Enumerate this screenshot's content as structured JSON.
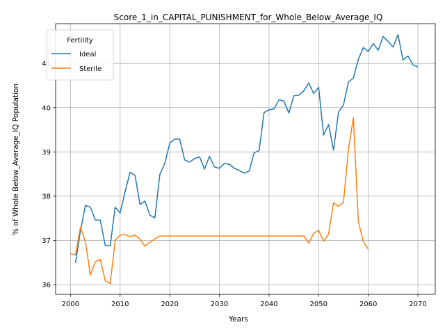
{
  "chart_data": {
    "type": "line",
    "title": "Score_1_in_CAPITAL_PUNISHMENT_for_Whole_Below_Average_IQ",
    "xlabel": "Years",
    "ylabel": "% of Whole Below_Average_IQ Population",
    "xlim": [
      1997,
      2073.5
    ],
    "ylim": [
      35.78,
      41.9
    ],
    "x_ticks": [
      2000,
      2010,
      2020,
      2030,
      2040,
      2050,
      2060,
      2070
    ],
    "y_ticks": [
      36,
      37,
      38,
      39,
      40,
      41
    ],
    "grid": true,
    "legend": {
      "title": "Fertility",
      "position": "top-left"
    },
    "series": [
      {
        "name": "Ideal",
        "color": "#1f77b4",
        "x": [
          2001,
          2002,
          2003,
          2004,
          2005,
          2006,
          2007,
          2008,
          2009,
          2010,
          2011,
          2012,
          2013,
          2014,
          2015,
          2016,
          2017,
          2018,
          2019,
          2020,
          2021,
          2022,
          2023,
          2024,
          2025,
          2026,
          2027,
          2028,
          2029,
          2030,
          2031,
          2032,
          2033,
          2034,
          2035,
          2036,
          2037,
          2038,
          2039,
          2040,
          2041,
          2042,
          2043,
          2044,
          2045,
          2046,
          2047,
          2048,
          2049,
          2050,
          2051,
          2052,
          2053,
          2054,
          2055,
          2056,
          2057,
          2058,
          2059,
          2060,
          2061,
          2062,
          2063,
          2064,
          2065,
          2066,
          2067,
          2068,
          2069,
          2070
        ],
        "values": [
          36.49,
          37.22,
          37.79,
          37.75,
          37.46,
          37.46,
          36.88,
          36.88,
          37.75,
          37.62,
          38.1,
          38.54,
          38.47,
          37.81,
          37.89,
          37.57,
          37.51,
          38.49,
          38.74,
          39.2,
          39.29,
          39.29,
          38.82,
          38.77,
          38.85,
          38.89,
          38.61,
          38.9,
          38.66,
          38.63,
          38.74,
          38.72,
          38.63,
          38.58,
          38.52,
          38.57,
          38.98,
          39.03,
          39.89,
          39.95,
          39.97,
          40.18,
          40.15,
          39.88,
          40.27,
          40.28,
          40.38,
          40.56,
          40.32,
          40.46,
          39.38,
          39.62,
          39.04,
          39.9,
          40.06,
          40.58,
          40.67,
          41.09,
          41.36,
          41.27,
          41.45,
          41.3,
          41.61,
          41.5,
          41.37,
          41.65,
          41.08,
          41.17,
          40.97,
          40.92
        ]
      },
      {
        "name": "Sterile",
        "color": "#ff7f0e",
        "x": [
          2000,
          2001,
          2002,
          2003,
          2004,
          2005,
          2006,
          2007,
          2008,
          2009,
          2010,
          2011,
          2012,
          2013,
          2014,
          2015,
          2016,
          2017,
          2018,
          2019,
          2020,
          2021,
          2022,
          2023,
          2024,
          2025,
          2026,
          2027,
          2028,
          2029,
          2030,
          2031,
          2032,
          2033,
          2034,
          2035,
          2036,
          2037,
          2038,
          2039,
          2040,
          2041,
          2042,
          2043,
          2044,
          2045,
          2046,
          2047,
          2048,
          2049,
          2050,
          2051,
          2052,
          2053,
          2054,
          2055,
          2056,
          2057,
          2058,
          2059,
          2060
        ],
        "values": [
          36.7,
          36.67,
          37.3,
          36.97,
          36.22,
          36.52,
          36.57,
          36.09,
          36.02,
          37.0,
          37.12,
          37.13,
          37.08,
          37.12,
          37.03,
          36.87,
          36.96,
          37.03,
          37.1,
          37.1,
          37.1,
          37.1,
          37.1,
          37.1,
          37.1,
          37.1,
          37.1,
          37.1,
          37.1,
          37.1,
          37.1,
          37.1,
          37.1,
          37.1,
          37.1,
          37.1,
          37.1,
          37.1,
          37.1,
          37.1,
          37.1,
          37.1,
          37.1,
          37.1,
          37.1,
          37.1,
          37.1,
          37.1,
          36.94,
          37.16,
          37.23,
          36.98,
          37.14,
          37.85,
          37.77,
          37.86,
          39.05,
          39.78,
          37.43,
          36.97,
          36.8
        ]
      }
    ]
  }
}
